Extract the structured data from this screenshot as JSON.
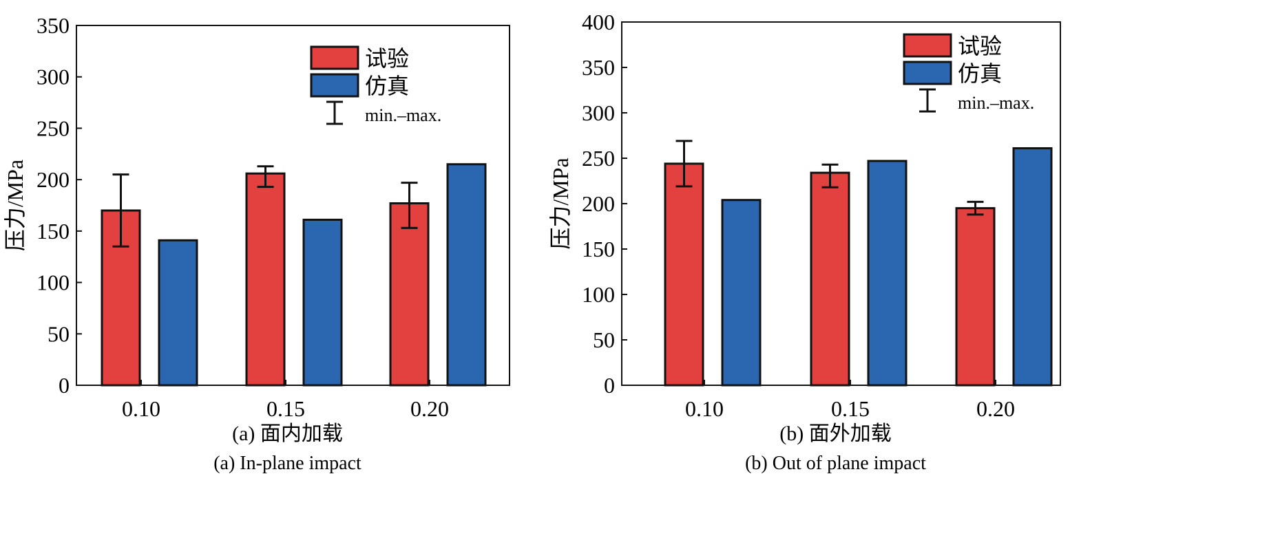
{
  "colors": {
    "test": "#e2413f",
    "sim": "#2b67b0"
  },
  "chart_data": [
    {
      "type": "bar",
      "title": "(a) 面内加载",
      "subtitle": "(a) In-plane impact",
      "ylabel": "压力/MPa",
      "xlabel": "",
      "ylim": [
        0,
        350
      ],
      "yticks": [
        "0",
        "50",
        "100",
        "150",
        "200",
        "250",
        "300",
        "350"
      ],
      "categories": [
        "0.10",
        "0.15",
        "0.20"
      ],
      "legend": {
        "position": "top-right",
        "entries": [
          "试验",
          "仿真",
          "min.–max."
        ]
      },
      "series": [
        {
          "name": "试验",
          "values": [
            170,
            206,
            177
          ],
          "err_min": [
            135,
            193,
            153
          ],
          "err_max": [
            205,
            213,
            197
          ]
        },
        {
          "name": "仿真",
          "values": [
            141,
            161,
            215
          ]
        }
      ]
    },
    {
      "type": "bar",
      "title": "(b) 面外加载",
      "subtitle": "(b) Out of plane impact",
      "ylabel": "压力/MPa",
      "xlabel": "",
      "ylim": [
        0,
        400
      ],
      "yticks": [
        "0",
        "50",
        "100",
        "150",
        "200",
        "250",
        "300",
        "350",
        "400"
      ],
      "categories": [
        "0.10",
        "0.15",
        "0.20"
      ],
      "legend": {
        "position": "top-right",
        "entries": [
          "试验",
          "仿真",
          "min.–max."
        ]
      },
      "series": [
        {
          "name": "试验",
          "values": [
            244,
            234,
            195
          ],
          "err_min": [
            219,
            218,
            188
          ],
          "err_max": [
            269,
            243,
            202
          ]
        },
        {
          "name": "仿真",
          "values": [
            204,
            247,
            261
          ]
        }
      ]
    }
  ]
}
